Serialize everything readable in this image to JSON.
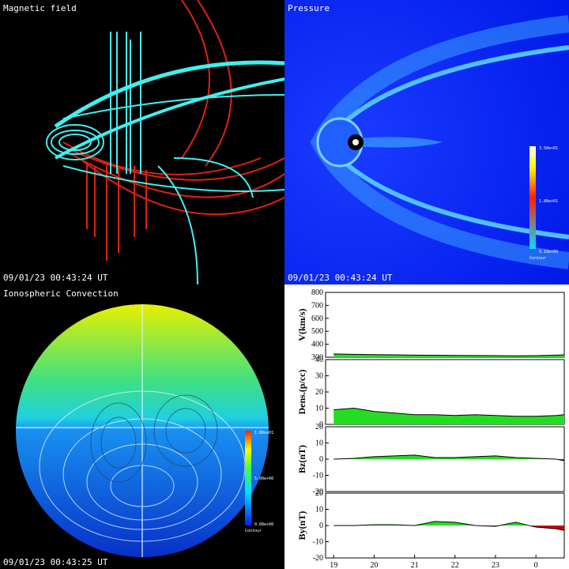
{
  "panels": {
    "magnetic": {
      "title": "Magnetic field",
      "time": "09/01/23 00:43:24 UT"
    },
    "pressure": {
      "title": "Pressure",
      "time": "09/01/23 00:43:24 UT",
      "colorbar": [
        "3.50e+01",
        "1.80e+01",
        "0.10e+00",
        "Contour"
      ]
    },
    "convection": {
      "title": "Ionospheric Convection",
      "time": "09/01/23 00:43:25 UT",
      "colorbar": [
        "1.00e+01",
        "5.00e+00",
        "0.00e+00",
        "Contour"
      ]
    }
  },
  "chart_data": [
    {
      "type": "area",
      "ylabel": "V(km/s)",
      "x": [
        19,
        19.5,
        20,
        20.5,
        21,
        21.5,
        22,
        22.5,
        23,
        23.5,
        24,
        24.5,
        24.7
      ],
      "series": [
        {
          "color": "#22dd22",
          "values": [
            325,
            322,
            320,
            318,
            316,
            315,
            314,
            313,
            312,
            311,
            312,
            316,
            318
          ]
        }
      ],
      "xlim": [
        18.8,
        24.7
      ],
      "ylim": [
        300,
        800
      ],
      "yticks": [
        300,
        400,
        500,
        600,
        700,
        800
      ]
    },
    {
      "type": "area",
      "ylabel": "Dens.(p/cc)",
      "x": [
        19,
        19.5,
        20,
        20.5,
        21,
        21.5,
        22,
        22.5,
        23,
        23.5,
        24,
        24.5,
        24.7
      ],
      "series": [
        {
          "color": "#22dd22",
          "values": [
            9,
            10,
            8,
            7,
            6,
            6,
            5.5,
            6,
            5.5,
            5,
            5,
            5.5,
            6
          ]
        }
      ],
      "xlim": [
        18.8,
        24.7
      ],
      "ylim": [
        0,
        40
      ],
      "yticks": [
        0,
        10,
        20,
        30,
        40
      ]
    },
    {
      "type": "area",
      "ylabel": "Bz(nT)",
      "x": [
        19,
        19.5,
        20,
        20.5,
        21,
        21.5,
        22,
        22.5,
        23,
        23.5,
        24,
        24.5,
        24.7
      ],
      "series": [
        {
          "color": "#22dd22",
          "negative_color": "#cc0000",
          "values": [
            0,
            0.5,
            1.5,
            2,
            2.5,
            1,
            1,
            1.5,
            2,
            1,
            0.5,
            0,
            -1
          ]
        }
      ],
      "xlim": [
        18.8,
        24.7
      ],
      "ylim": [
        -20,
        20
      ],
      "yticks": [
        -20,
        -10,
        0,
        10,
        20
      ]
    },
    {
      "type": "area",
      "ylabel": "By(nT)",
      "x": [
        19,
        19.5,
        20,
        20.5,
        21,
        21.5,
        22,
        22.5,
        23,
        23.5,
        24,
        24.5,
        24.7
      ],
      "series": [
        {
          "color": "#22dd22",
          "negative_color": "#cc0000",
          "values": [
            0,
            0,
            0.5,
            0.5,
            0,
            2.5,
            2,
            0,
            -0.5,
            2,
            -1,
            -2,
            -3
          ]
        }
      ],
      "xlim": [
        18.8,
        24.7
      ],
      "ylim": [
        -20,
        20
      ],
      "yticks": [
        -20,
        -10,
        0,
        10,
        20
      ],
      "xticks": [
        19,
        20,
        21,
        22,
        23,
        {
          "value": 24,
          "label": "0"
        }
      ]
    }
  ]
}
